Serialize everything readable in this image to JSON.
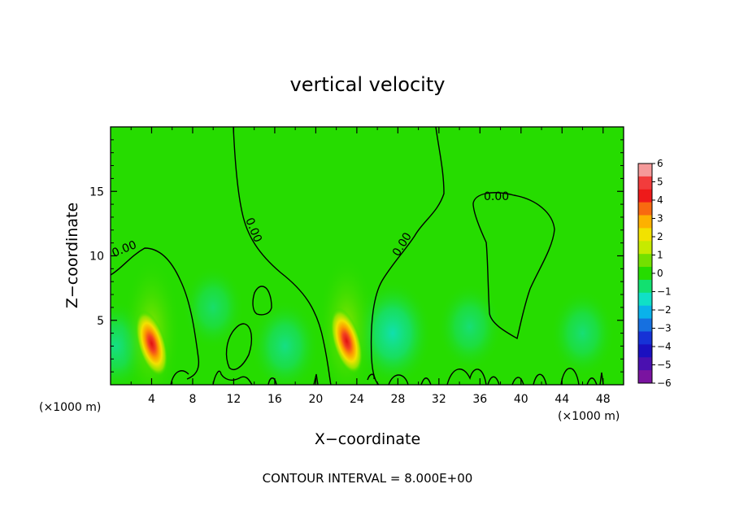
{
  "chart_data": {
    "type": "heatmap",
    "title": "vertical velocity",
    "xlabel": "X−coordinate",
    "ylabel": "Z−coordinate",
    "x_unit_left": "(×1000 m)",
    "x_unit_right": "(×1000 m)",
    "xlim": [
      0,
      50
    ],
    "ylim": [
      0,
      20
    ],
    "x_ticks": [
      4,
      8,
      12,
      16,
      20,
      24,
      28,
      32,
      36,
      40,
      44,
      48
    ],
    "y_ticks": [
      5,
      10,
      15
    ],
    "footnote": "CONTOUR INTERVAL = 8.000E+00",
    "colorbar": {
      "ticks": [
        "6",
        "5",
        "4",
        "3",
        "2",
        "1",
        "0",
        "−1",
        "−2",
        "−3",
        "−4",
        "−5",
        "−6"
      ],
      "colors": [
        "#f59a9a",
        "#f23c3c",
        "#ee1a1a",
        "#f86a10",
        "#fdb100",
        "#f2e200",
        "#c6ea00",
        "#74e000",
        "#26dc00",
        "#12e070",
        "#10e0c6",
        "#0ab2ea",
        "#1670e0",
        "#1632d6",
        "#1a10c0",
        "#4a10b0",
        "#7a14a0"
      ]
    },
    "contour_labels": [
      "0.00",
      "0.00",
      "0.00",
      "0.00"
    ],
    "updrafts": [
      {
        "x": 4.0,
        "z": 3.2,
        "w": 6.0
      },
      {
        "x": 23.0,
        "z": 3.4,
        "w": 6.0
      }
    ],
    "downdrafts": [
      {
        "x": 10.0,
        "z": 6.0,
        "w": -0.5
      },
      {
        "x": 17.0,
        "z": 3.0,
        "w": -1.0
      },
      {
        "x": 27.5,
        "z": 4.0,
        "w": -1.8
      },
      {
        "x": 35.0,
        "z": 4.5,
        "w": -0.7
      },
      {
        "x": 46.0,
        "z": 4.0,
        "w": -0.7
      },
      {
        "x": 0.5,
        "z": 3.0,
        "w": -1.0
      }
    ]
  }
}
